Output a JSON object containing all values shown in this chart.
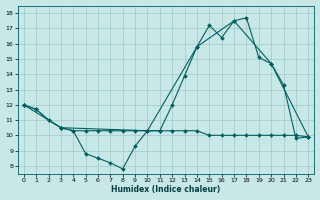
{
  "title": "",
  "xlabel": "Humidex (Indice chaleur)",
  "ylabel": "",
  "bg_color": "#c8e8e8",
  "grid_color": "#a0c8c8",
  "line_color": "#006060",
  "xlim": [
    -0.5,
    23.5
  ],
  "ylim": [
    7.5,
    18.5
  ],
  "xticks": [
    0,
    1,
    2,
    3,
    4,
    5,
    6,
    7,
    8,
    9,
    10,
    11,
    12,
    13,
    14,
    15,
    16,
    17,
    18,
    19,
    20,
    21,
    22,
    23
  ],
  "yticks": [
    8,
    9,
    10,
    11,
    12,
    13,
    14,
    15,
    16,
    17,
    18
  ],
  "line1_x": [
    0,
    1,
    2,
    3,
    4,
    5,
    6,
    7,
    8,
    9,
    10,
    11,
    12,
    13,
    14,
    15,
    16,
    17,
    18,
    19,
    20,
    21,
    22,
    23
  ],
  "line1_y": [
    12,
    11.7,
    11,
    10.5,
    10.3,
    8.8,
    8.5,
    8.2,
    7.8,
    9.3,
    10.3,
    10.3,
    12,
    13.9,
    15.8,
    17.2,
    16.4,
    17.5,
    17.7,
    15.1,
    14.7,
    13.3,
    9.8,
    9.9
  ],
  "line2_x": [
    0,
    1,
    2,
    3,
    4,
    5,
    6,
    7,
    8,
    9,
    10,
    11,
    12,
    13,
    14,
    15,
    16,
    17,
    18,
    19,
    20,
    21,
    22,
    23
  ],
  "line2_y": [
    12,
    11.7,
    11,
    10.5,
    10.3,
    10.3,
    10.3,
    10.3,
    10.3,
    10.3,
    10.3,
    10.3,
    10.3,
    10.3,
    10.3,
    10.0,
    10.0,
    10.0,
    10.0,
    10.0,
    10.0,
    10.0,
    10.0,
    9.9
  ],
  "line3_x": [
    0,
    3,
    10,
    14,
    17,
    20,
    23
  ],
  "line3_y": [
    12,
    10.5,
    10.3,
    15.8,
    17.5,
    14.7,
    9.9
  ]
}
